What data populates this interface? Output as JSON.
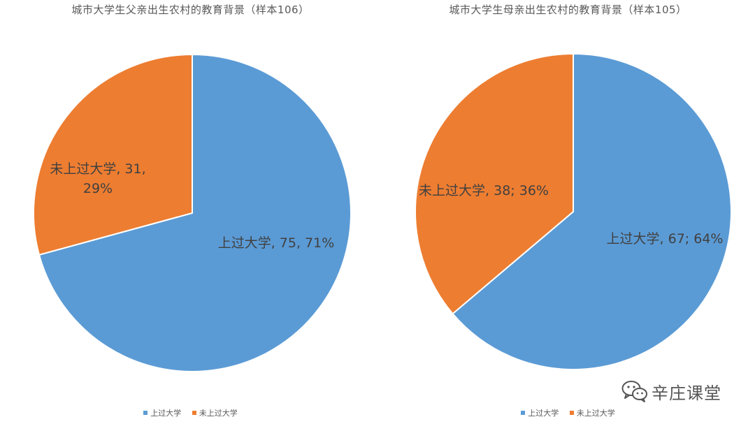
{
  "colors": {
    "attended": "#5b9bd5",
    "not_attended": "#ed7d31",
    "label_text": "#404040",
    "title_text": "#595959"
  },
  "watermark": {
    "icon": "wechat-icon",
    "text": "辛庄课堂"
  },
  "chart_data": [
    {
      "type": "pie",
      "title": "城市大学生父亲出生农村的教育背景（样本106）",
      "legend": [
        "上过大学",
        "未上过大学"
      ],
      "legend_position": "bottom",
      "slices": [
        {
          "name": "上过大学",
          "value": 75,
          "percent": 71,
          "label": "上过大学, 75, 71%"
        },
        {
          "name": "未上过大学",
          "value": 31,
          "percent": 29,
          "label": "未上过大学, 31, 29%"
        }
      ]
    },
    {
      "type": "pie",
      "title": "城市大学生母亲出生农村的教育背景（样本105）",
      "legend": [
        "上过大学",
        "未上过大学"
      ],
      "legend_position": "bottom",
      "slices": [
        {
          "name": "上过大学",
          "value": 67,
          "percent": 64,
          "label": "上过大学, 67; 64%"
        },
        {
          "name": "未上过大学",
          "value": 38,
          "percent": 36,
          "label": "未上过大学, 38; 36%"
        }
      ]
    }
  ]
}
